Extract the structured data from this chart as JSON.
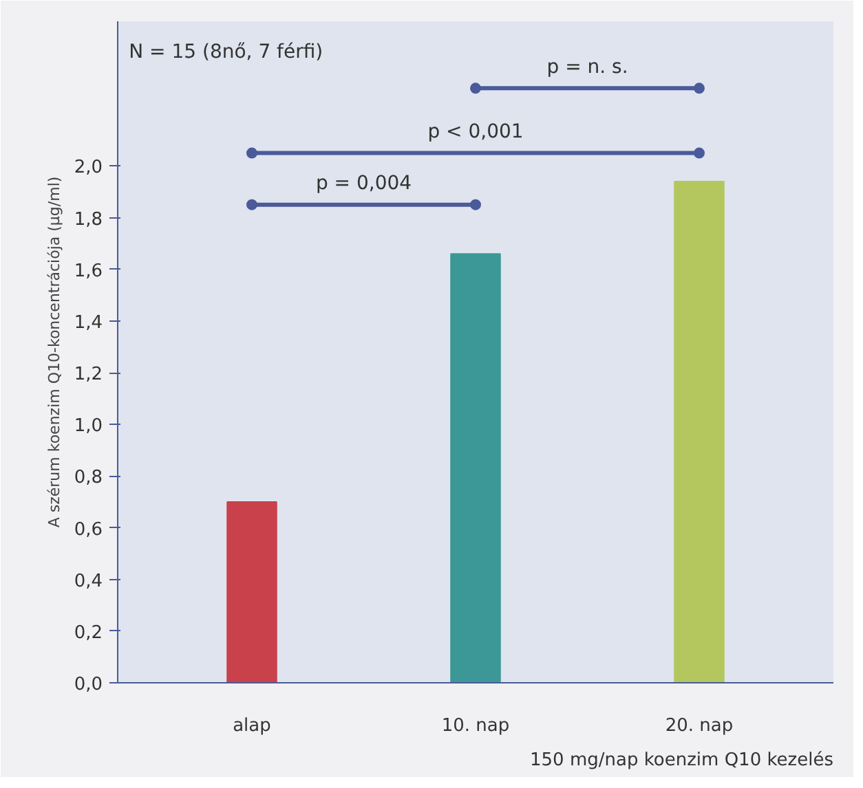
{
  "chart_data": {
    "type": "bar",
    "ylabel": "A szérum koenzim Q10-koncentrációja (µg/ml)",
    "xlabel": "150 mg/nap koenzim Q10 kezelés",
    "categories": [
      "alap",
      "10. nap",
      "20. nap"
    ],
    "values": [
      0.7,
      1.66,
      1.94
    ],
    "colors": [
      "#c8414b",
      "#3b9896",
      "#b4c75e"
    ],
    "ylim": [
      0,
      2.56
    ],
    "yticks": [
      {
        "value": 0,
        "label": "0,0"
      },
      {
        "value": 0.2,
        "label": "0,2"
      },
      {
        "value": 0.4,
        "label": "0,4"
      },
      {
        "value": 0.6,
        "label": "0,6"
      },
      {
        "value": 0.8,
        "label": "0,8"
      },
      {
        "value": 1.0,
        "label": "1,0"
      },
      {
        "value": 1.2,
        "label": "1,2"
      },
      {
        "value": 1.4,
        "label": "1,4"
      },
      {
        "value": 1.6,
        "label": "1,6"
      },
      {
        "value": 1.8,
        "label": "1,8"
      },
      {
        "value": 2.0,
        "label": "2,0"
      }
    ],
    "grid": false,
    "annotations": [
      "N = 15 (8nő, 7 férfi)",
      "p = 0,004",
      "p < 0,001",
      "p = n. s."
    ]
  }
}
